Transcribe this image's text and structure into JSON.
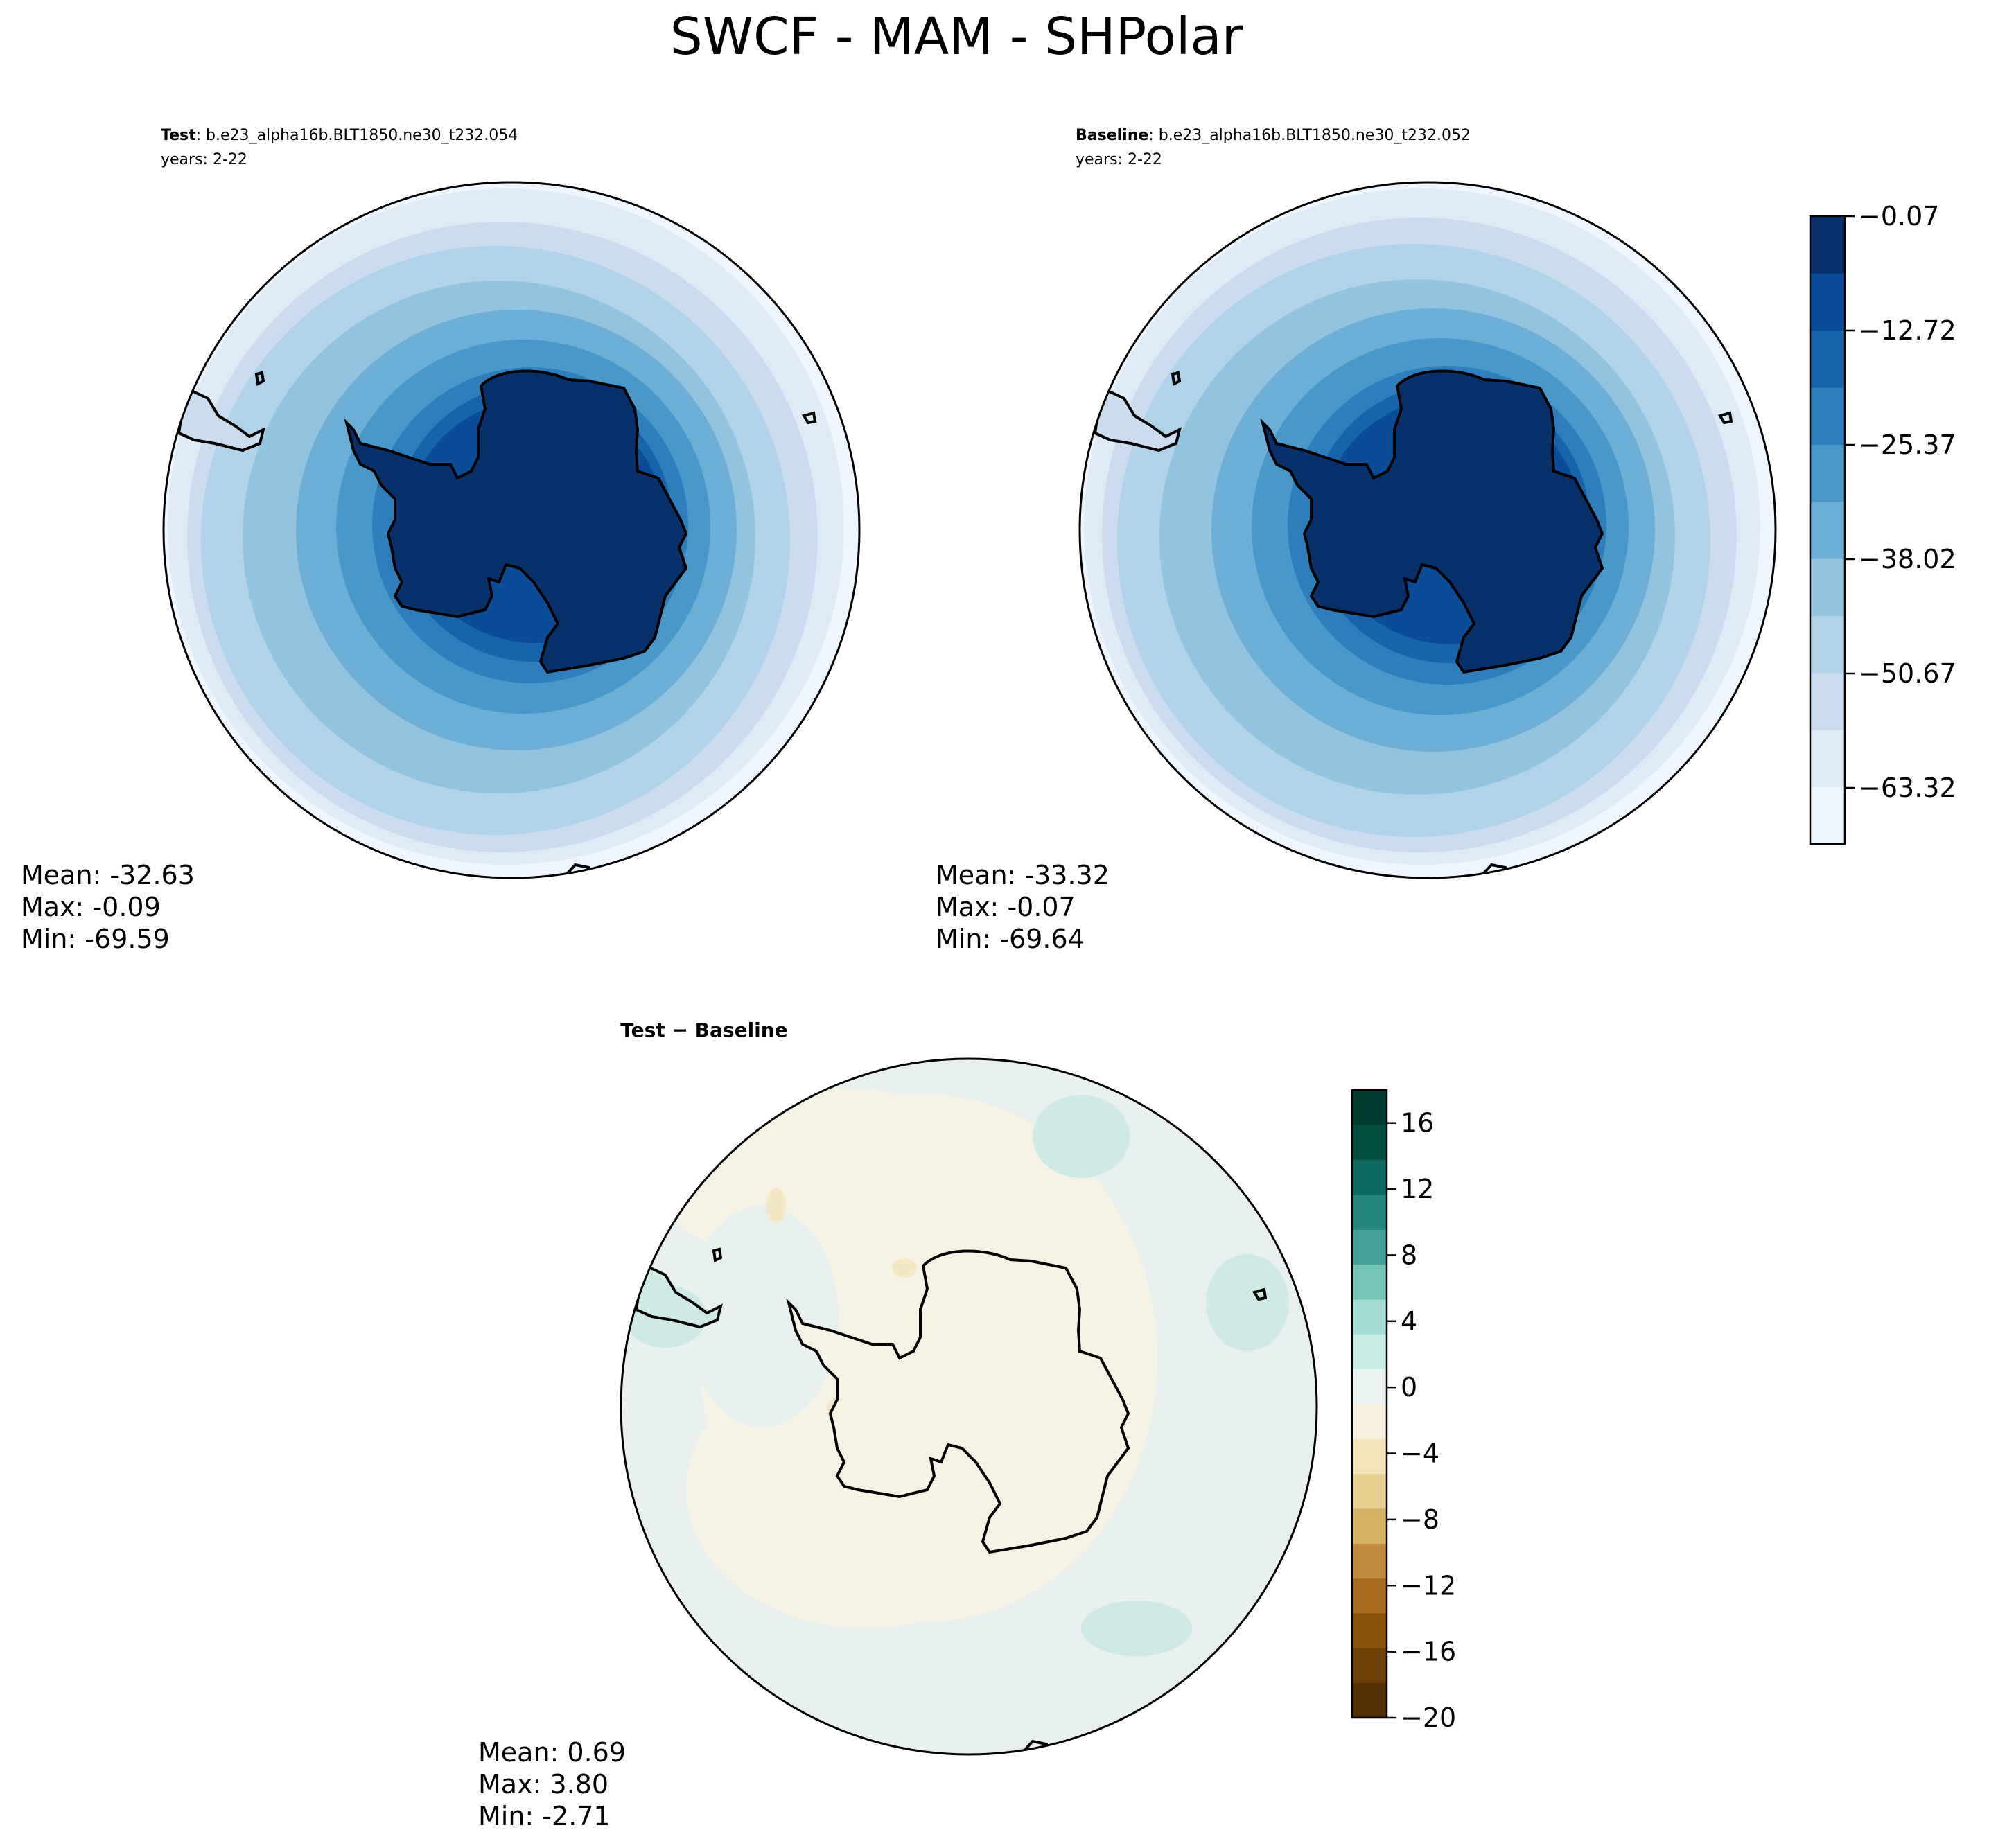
{
  "figure": {
    "title": "SWCF - MAM - SHPolar"
  },
  "panels": [
    {
      "id": "test",
      "label_bold": "Test",
      "label_rest": ": b.e23_alpha16b.BLT1850.ne30_t232.054",
      "years": "years: 2-22",
      "stats": {
        "mean": "Mean: -32.63",
        "max": "Max: -0.09",
        "min": "Min: -69.59"
      }
    },
    {
      "id": "baseline",
      "label_bold": "Baseline",
      "label_rest": ": b.e23_alpha16b.BLT1850.ne30_t232.052",
      "years": "years: 2-22",
      "stats": {
        "mean": "Mean: -33.32",
        "max": "Max: -0.07",
        "min": "Min: -69.64"
      }
    },
    {
      "id": "diff",
      "label_bold": "Test − Baseline",
      "stats": {
        "mean": "Mean:  0.69",
        "max": "Max:  3.80",
        "min": "Min: -2.71"
      }
    }
  ],
  "colorbars": {
    "main": {
      "colormap": "Blues_r",
      "ticks": [
        "−0.07",
        "−12.72",
        "−25.37",
        "−38.02",
        "−50.67",
        "−63.32"
      ],
      "colors": [
        "#eff5fc",
        "#deebf7",
        "#cbdcef",
        "#b2d2e8",
        "#93c4df",
        "#6caed6",
        "#4a98c9",
        "#2f7ebc",
        "#1764ab",
        "#0a4c97",
        "#08306b"
      ]
    },
    "diff": {
      "colormap": "BrBG",
      "ticks": [
        "16",
        "12",
        "8",
        "4",
        "0",
        "−4",
        "−8",
        "−12",
        "−16",
        "−20"
      ],
      "colors": [
        "#543005",
        "#6e4007",
        "#8a510b",
        "#a9691d",
        "#c38b3e",
        "#d6b264",
        "#e7d08f",
        "#f2e3b8",
        "#f5efdc",
        "#e9f2f0",
        "#c9ebe5",
        "#a3dcd3",
        "#73c6b8",
        "#45a199",
        "#238680",
        "#0c6a60",
        "#01503f",
        "#003c30"
      ]
    }
  },
  "map_colors": {
    "continent_coast": "#000000",
    "diff_background_neutral": "#f5f2e4",
    "diff_ocean_positive": "#e7f0ee",
    "diff_positive_patch": "#cdebe4",
    "diff_negative_patch": "#f4e7c8"
  }
}
